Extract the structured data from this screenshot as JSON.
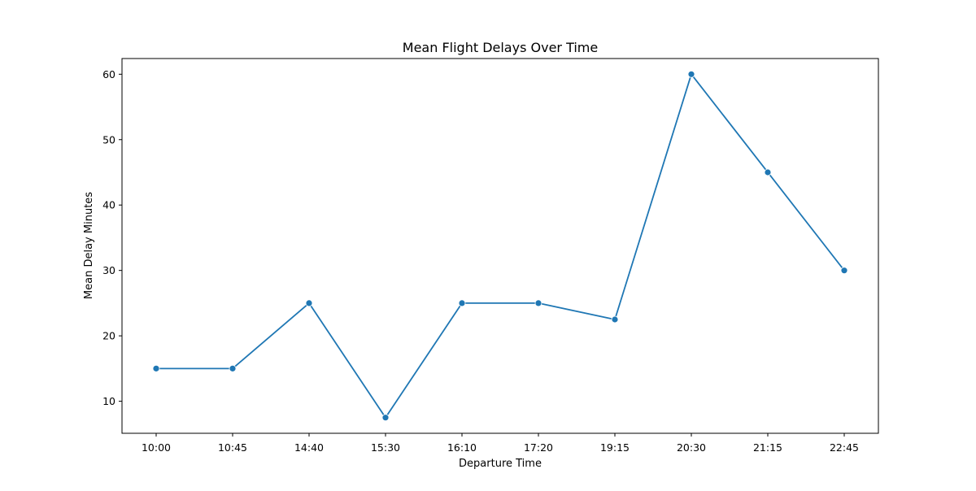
{
  "chart_data": {
    "type": "line",
    "title": "Mean Flight Delays Over Time",
    "xlabel": "Departure Time",
    "ylabel": "Mean Delay Minutes",
    "categories": [
      "10:00",
      "10:45",
      "14:40",
      "15:30",
      "16:10",
      "17:20",
      "19:15",
      "20:30",
      "21:15",
      "22:45"
    ],
    "series": [
      {
        "values": [
          15,
          15,
          25,
          7.5,
          25,
          25,
          22.5,
          60,
          45,
          30
        ],
        "color": "#1f77b4"
      }
    ],
    "y_ticks": [
      10,
      20,
      30,
      40,
      50,
      60
    ],
    "ylim": [
      5.1,
      62.4
    ],
    "grid": false,
    "legend": "none"
  }
}
